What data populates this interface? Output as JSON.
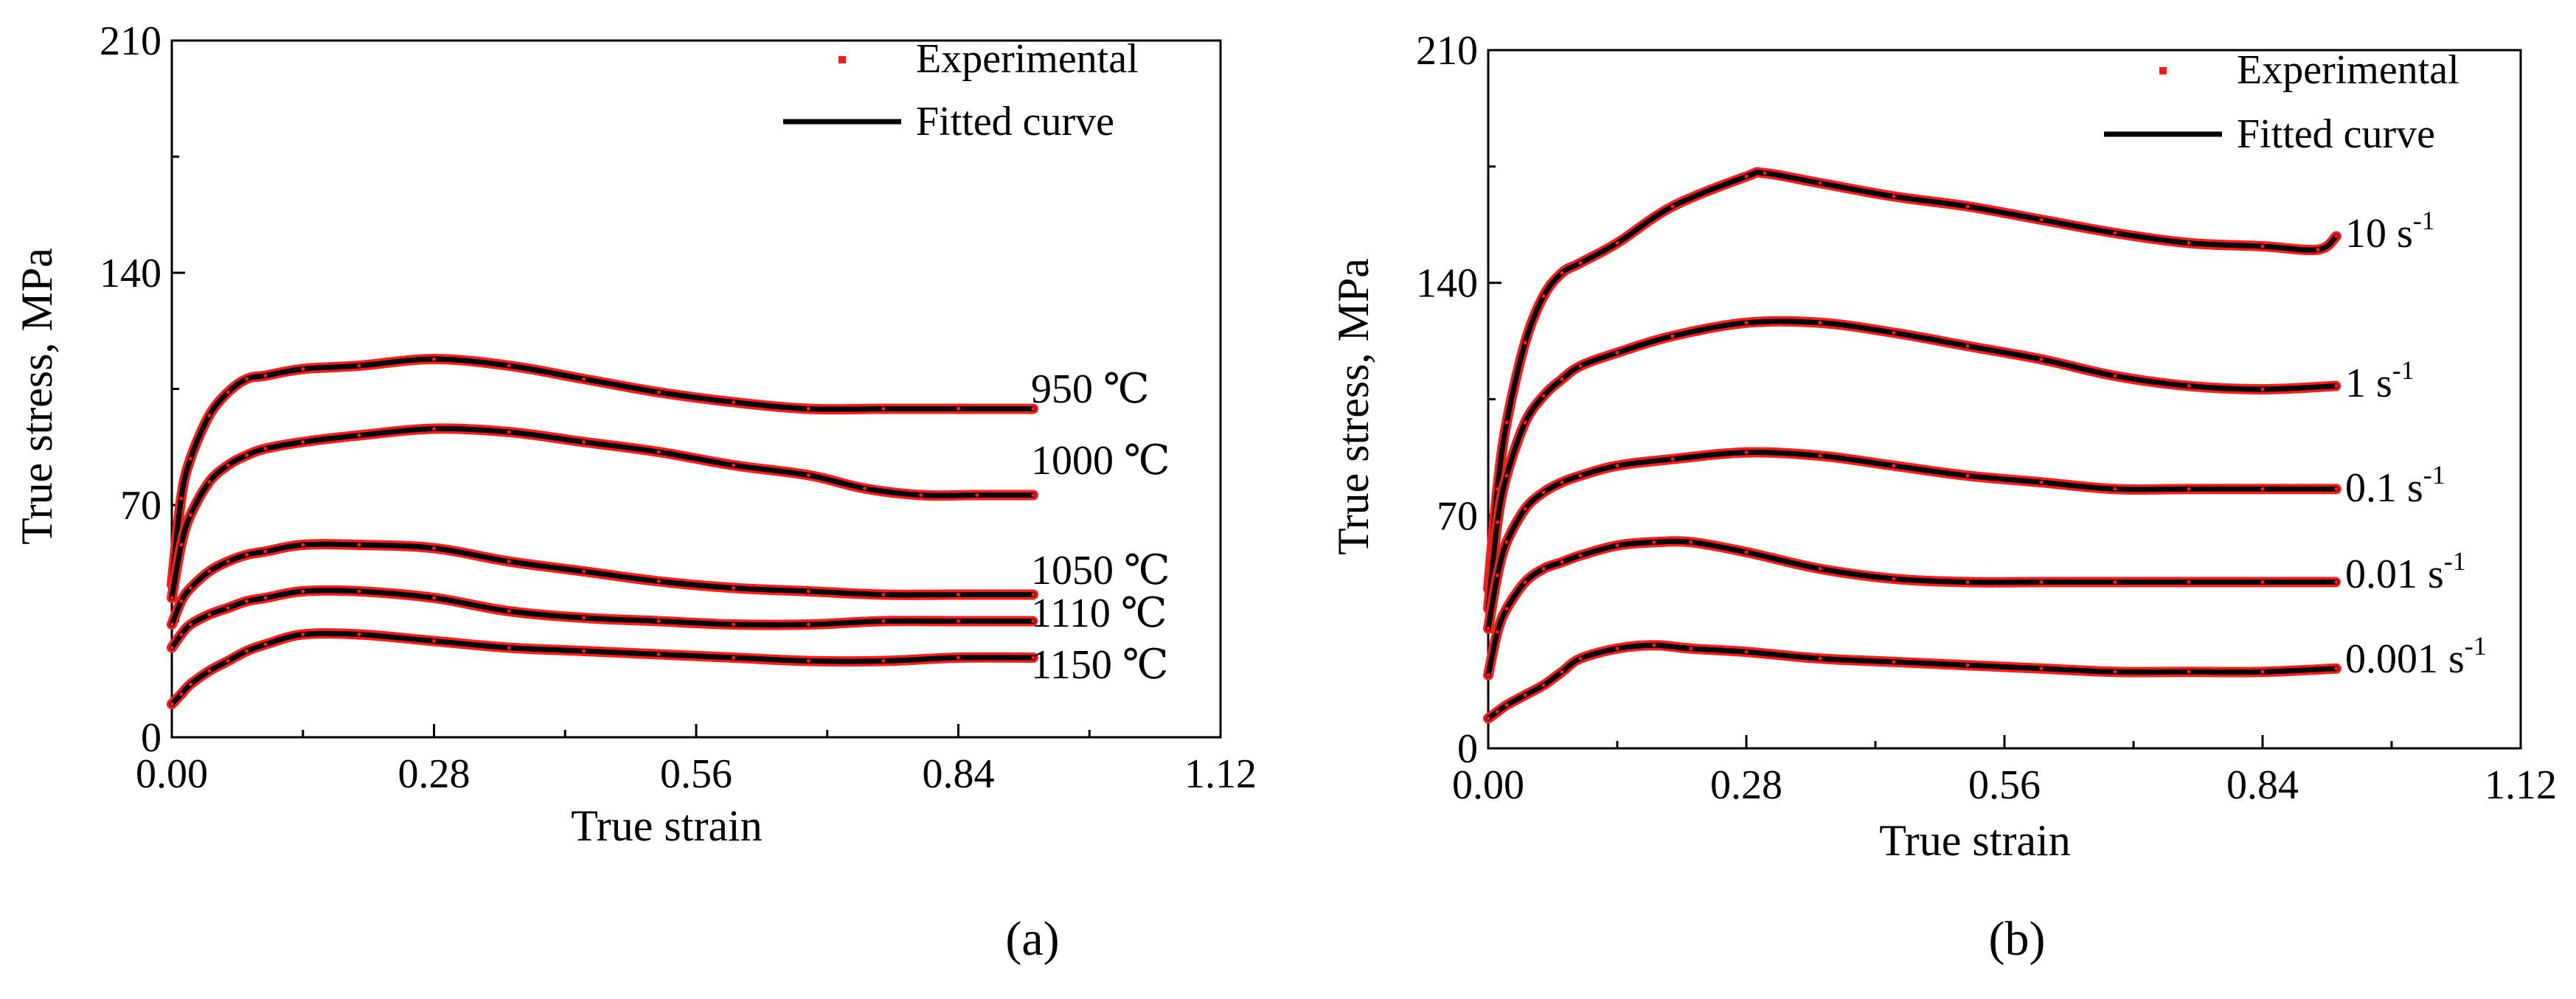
{
  "colors": {
    "experimental": "#ff1a1a",
    "fitted": "#000000",
    "axis": "#000000"
  },
  "chart_data": [
    {
      "type": "line",
      "panel_label": "(a)",
      "xlabel": "True strain",
      "ylabel": "True stress, MPa",
      "xlim": [
        0,
        1.12
      ],
      "ylim": [
        0,
        210
      ],
      "xticks": [
        "0.00",
        "0.28",
        "0.56",
        "0.84",
        "1.12"
      ],
      "yticks": [
        "0",
        "70",
        "140",
        "210"
      ],
      "legend": {
        "placement": "top-right",
        "experimental": "Experimental",
        "fitted": "Fitted curve"
      },
      "series": [
        {
          "name": "950 ℃",
          "label": "950 ℃",
          "x": [
            0,
            0.01,
            0.02,
            0.04,
            0.06,
            0.08,
            0.1,
            0.14,
            0.2,
            0.28,
            0.36,
            0.44,
            0.52,
            0.6,
            0.68,
            0.76,
            0.84,
            0.92
          ],
          "y": [
            46,
            72,
            84,
            97,
            104,
            108,
            109,
            111,
            112,
            114,
            112,
            108,
            104,
            101,
            99,
            99,
            99,
            99
          ]
        },
        {
          "name": "1000 ℃",
          "label": "1000 ℃",
          "x": [
            0,
            0.01,
            0.02,
            0.04,
            0.06,
            0.08,
            0.1,
            0.14,
            0.2,
            0.28,
            0.36,
            0.44,
            0.52,
            0.6,
            0.68,
            0.74,
            0.8,
            0.86,
            0.92
          ],
          "y": [
            42,
            58,
            67,
            77,
            82,
            85,
            87,
            89,
            91,
            93,
            92,
            89,
            86,
            82,
            79,
            75,
            73,
            73,
            73
          ]
        },
        {
          "name": "1050 ℃",
          "label": "1050 ℃",
          "x": [
            0,
            0.01,
            0.02,
            0.04,
            0.06,
            0.08,
            0.1,
            0.14,
            0.2,
            0.28,
            0.36,
            0.44,
            0.52,
            0.6,
            0.68,
            0.76,
            0.84,
            0.92
          ],
          "y": [
            34,
            41,
            45,
            50,
            53,
            55,
            56,
            58,
            58,
            57,
            53,
            50,
            47,
            45,
            44,
            43,
            43,
            43
          ]
        },
        {
          "name": "1110 ℃",
          "label": "1110 ℃",
          "x": [
            0,
            0.01,
            0.02,
            0.04,
            0.06,
            0.08,
            0.1,
            0.14,
            0.2,
            0.28,
            0.36,
            0.44,
            0.52,
            0.6,
            0.68,
            0.76,
            0.84,
            0.92
          ],
          "y": [
            27,
            31,
            34,
            37,
            39,
            41,
            42,
            44,
            44,
            42,
            38,
            36,
            35,
            34,
            34,
            35,
            35,
            35
          ]
        },
        {
          "name": "1150 ℃",
          "label": "1150 ℃",
          "x": [
            0,
            0.01,
            0.02,
            0.04,
            0.06,
            0.08,
            0.1,
            0.14,
            0.2,
            0.28,
            0.36,
            0.44,
            0.52,
            0.6,
            0.68,
            0.76,
            0.84,
            0.92
          ],
          "y": [
            10,
            13,
            16,
            20,
            23,
            26,
            28,
            31,
            31,
            29,
            27,
            26,
            25,
            24,
            23,
            23,
            24,
            24
          ]
        }
      ]
    },
    {
      "type": "line",
      "panel_label": "(b)",
      "xlabel": "True strain",
      "ylabel": "True stress, MPa",
      "xlim": [
        0,
        1.12
      ],
      "ylim": [
        0,
        210
      ],
      "xticks": [
        "0.00",
        "0.28",
        "0.56",
        "0.84",
        "1.12"
      ],
      "yticks": [
        "0",
        "70",
        "140",
        "210"
      ],
      "legend": {
        "placement": "top-right",
        "experimental": "Experimental",
        "fitted": "Fitted curve"
      },
      "series": [
        {
          "name": "10 s-1",
          "label_base": "10 s",
          "label_exp": "-1",
          "x": [
            0,
            0.01,
            0.02,
            0.04,
            0.06,
            0.08,
            0.1,
            0.14,
            0.2,
            0.28,
            0.3,
            0.36,
            0.44,
            0.52,
            0.6,
            0.68,
            0.76,
            0.84,
            0.9,
            0.92
          ],
          "y": [
            48,
            78,
            98,
            122,
            136,
            143,
            146,
            152,
            163,
            172,
            173,
            170,
            166,
            163,
            159,
            155,
            152,
            151,
            150,
            154
          ]
        },
        {
          "name": "1 s-1",
          "label_base": "1 s",
          "label_exp": "-1",
          "x": [
            0,
            0.01,
            0.02,
            0.04,
            0.06,
            0.08,
            0.1,
            0.14,
            0.2,
            0.28,
            0.36,
            0.44,
            0.52,
            0.6,
            0.68,
            0.76,
            0.84,
            0.92
          ],
          "y": [
            42,
            68,
            82,
            98,
            106,
            111,
            115,
            119,
            124,
            128,
            128,
            125,
            121,
            117,
            112,
            109,
            108,
            109
          ]
        },
        {
          "name": "0.1 s-1",
          "label_base": "0.1 s",
          "label_exp": "-1",
          "x": [
            0,
            0.01,
            0.02,
            0.04,
            0.06,
            0.08,
            0.1,
            0.14,
            0.2,
            0.28,
            0.36,
            0.44,
            0.52,
            0.6,
            0.68,
            0.76,
            0.84,
            0.92
          ],
          "y": [
            36,
            52,
            62,
            72,
            77,
            80,
            82,
            85,
            87,
            89,
            88,
            85,
            82,
            80,
            78,
            78,
            78,
            78
          ]
        },
        {
          "name": "0.01 s-1",
          "label_base": "0.01 s",
          "label_exp": "-1",
          "x": [
            0,
            0.01,
            0.02,
            0.04,
            0.06,
            0.08,
            0.1,
            0.14,
            0.18,
            0.22,
            0.28,
            0.36,
            0.44,
            0.52,
            0.6,
            0.68,
            0.76,
            0.84,
            0.92
          ],
          "y": [
            22,
            35,
            42,
            50,
            54,
            56,
            58,
            61,
            62,
            62,
            59,
            54,
            51,
            50,
            50,
            50,
            50,
            50,
            50
          ]
        },
        {
          "name": "0.001 s-1",
          "label_base": "0.001 s",
          "label_exp": "-1",
          "x": [
            0,
            0.01,
            0.02,
            0.04,
            0.06,
            0.08,
            0.1,
            0.14,
            0.18,
            0.22,
            0.28,
            0.36,
            0.44,
            0.52,
            0.6,
            0.68,
            0.76,
            0.84,
            0.92
          ],
          "y": [
            9,
            11,
            13,
            16,
            19,
            23,
            27,
            30,
            31,
            30,
            29,
            27,
            26,
            25,
            24,
            23,
            23,
            23,
            24
          ]
        }
      ]
    }
  ]
}
